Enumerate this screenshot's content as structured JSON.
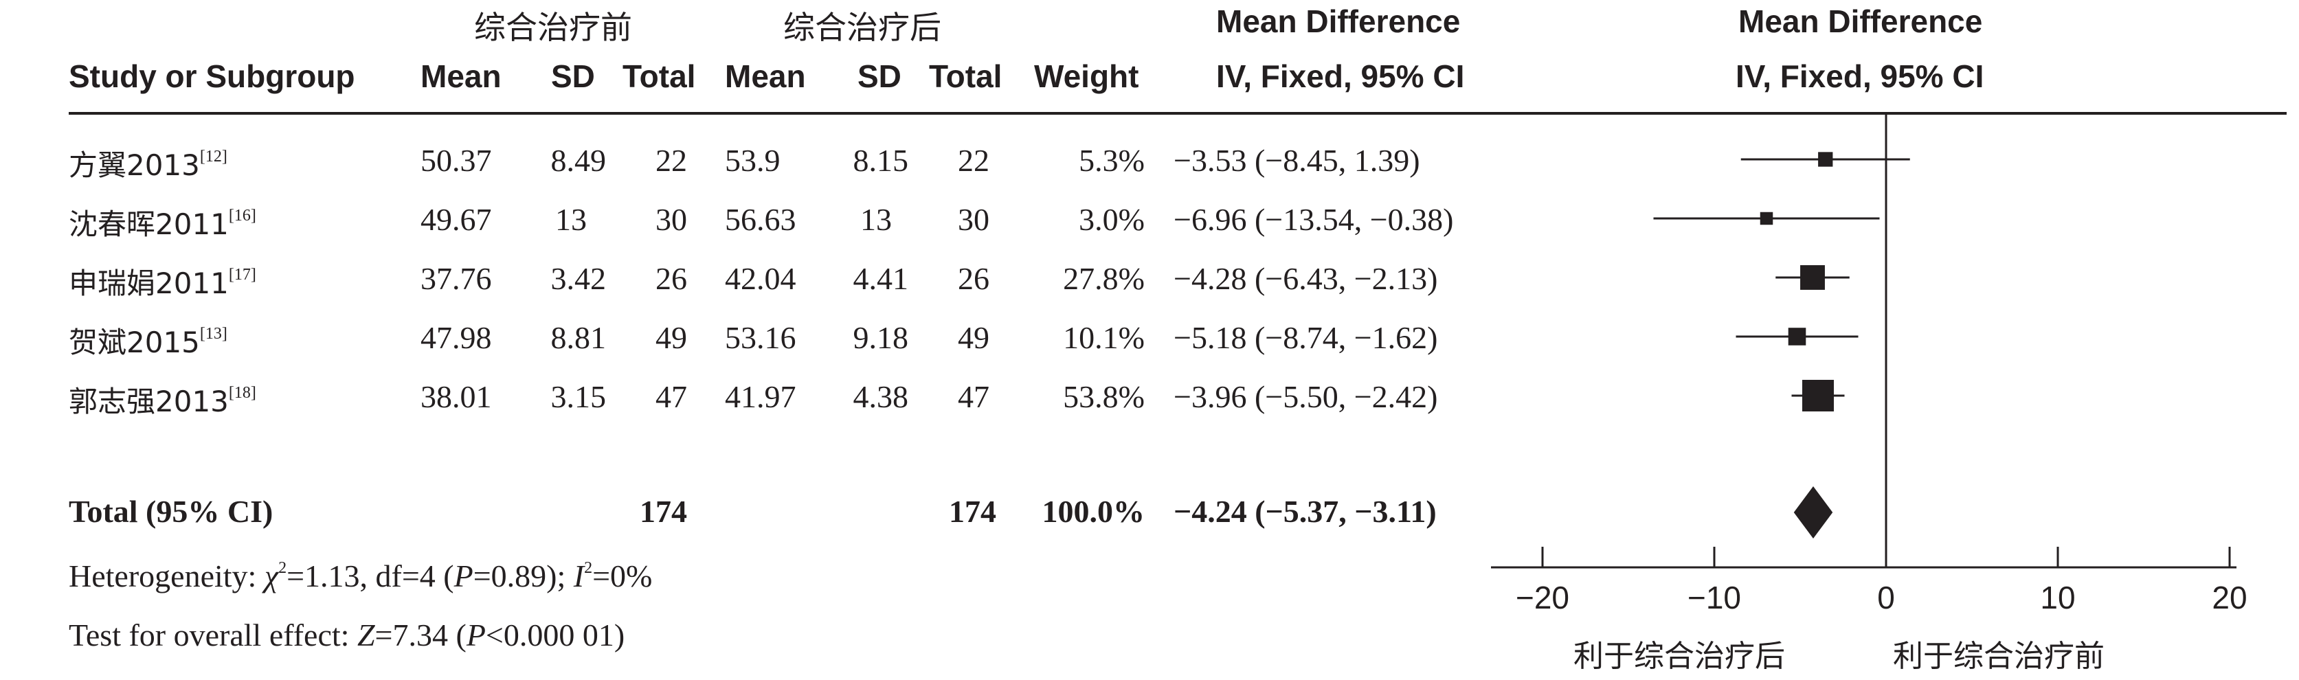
{
  "header": {
    "group_before": "综合治疗前",
    "group_after": "综合治疗后",
    "col_study": "Study or Subgroup",
    "col_mean1": "Mean",
    "col_sd1": "SD",
    "col_total1": "Total",
    "col_mean2": "Mean",
    "col_sd2": "SD",
    "col_total2": "Total",
    "col_weight": "Weight",
    "md_title": "Mean Difference",
    "md_method": "IV, Fixed, 95% CI",
    "plot_title": "Mean Difference",
    "plot_method": "IV, Fixed, 95% CI"
  },
  "studies": [
    {
      "name": "方翼2013",
      "ref": "[12]",
      "mean1": "50.37",
      "sd1": "8.49",
      "total1": "22",
      "mean2": "53.9",
      "sd2": "8.15",
      "total2": "22",
      "weight": "5.3%",
      "ci_text": "−3.53 (−8.45, 1.39)"
    },
    {
      "name": "沈春晖2011",
      "ref": "[16]",
      "mean1": "49.67",
      "sd1": "13",
      "total1": "30",
      "mean2": "56.63",
      "sd2": "13",
      "total2": "30",
      "weight": "3.0%",
      "ci_text": "−6.96 (−13.54, −0.38)"
    },
    {
      "name": "申瑞娟2011",
      "ref": "[17]",
      "mean1": "37.76",
      "sd1": "3.42",
      "total1": "26",
      "mean2": "42.04",
      "sd2": "4.41",
      "total2": "26",
      "weight": "27.8%",
      "ci_text": "−4.28 (−6.43, −2.13)"
    },
    {
      "name": "贺斌2015",
      "ref": "[13]",
      "mean1": "47.98",
      "sd1": "8.81",
      "total1": "49",
      "mean2": "53.16",
      "sd2": "9.18",
      "total2": "49",
      "weight": "10.1%",
      "ci_text": "−5.18 (−8.74, −1.62)"
    },
    {
      "name": "郭志强2013",
      "ref": "[18]",
      "mean1": "38.01",
      "sd1": "3.15",
      "total1": "47",
      "mean2": "41.97",
      "sd2": "4.38",
      "total2": "47",
      "weight": "53.8%",
      "ci_text": "−3.96 (−5.50, −2.42)"
    }
  ],
  "total": {
    "label": "Total (95% CI)",
    "total1": "174",
    "total2": "174",
    "weight": "100.0%",
    "ci_text": "−4.24 (−5.37, −3.11)"
  },
  "footer": {
    "het_prefix": "Heterogeneity: ",
    "het_chi": "χ",
    "het_chi_sup": "2",
    "het_mid": "=1.13, df=4 (",
    "het_p": "P",
    "het_pval": "=0.89); ",
    "het_i": "I",
    "het_i_sup": "2",
    "het_ival": "=0%",
    "test_prefix": "Test for overall effect: ",
    "test_z": "Z",
    "test_zval": "=7.34 (",
    "test_p": "P",
    "test_pval": "<0.000 01)"
  },
  "chart_data": {
    "type": "forest",
    "xlim": [
      -20,
      20
    ],
    "ticks": [
      -20,
      -10,
      0,
      10,
      20
    ],
    "tick_labels": [
      "−20",
      "−10",
      "0",
      "10",
      "20"
    ],
    "xlabel_left": "利于综合治疗后",
    "xlabel_right": "利于综合治疗前",
    "studies": [
      {
        "name": "方翼2013",
        "md": -3.53,
        "lower": -8.45,
        "upper": 1.39,
        "weight": 5.3
      },
      {
        "name": "沈春晖2011",
        "md": -6.96,
        "lower": -13.54,
        "upper": -0.38,
        "weight": 3.0
      },
      {
        "name": "申瑞娟2011",
        "md": -4.28,
        "lower": -6.43,
        "upper": -2.13,
        "weight": 27.8
      },
      {
        "name": "贺斌2015",
        "md": -5.18,
        "lower": -8.74,
        "upper": -1.62,
        "weight": 10.1
      },
      {
        "name": "郭志强2013",
        "md": -3.96,
        "lower": -5.5,
        "upper": -2.42,
        "weight": 53.8
      }
    ],
    "pooled": {
      "md": -4.24,
      "lower": -5.37,
      "upper": -3.11
    }
  }
}
